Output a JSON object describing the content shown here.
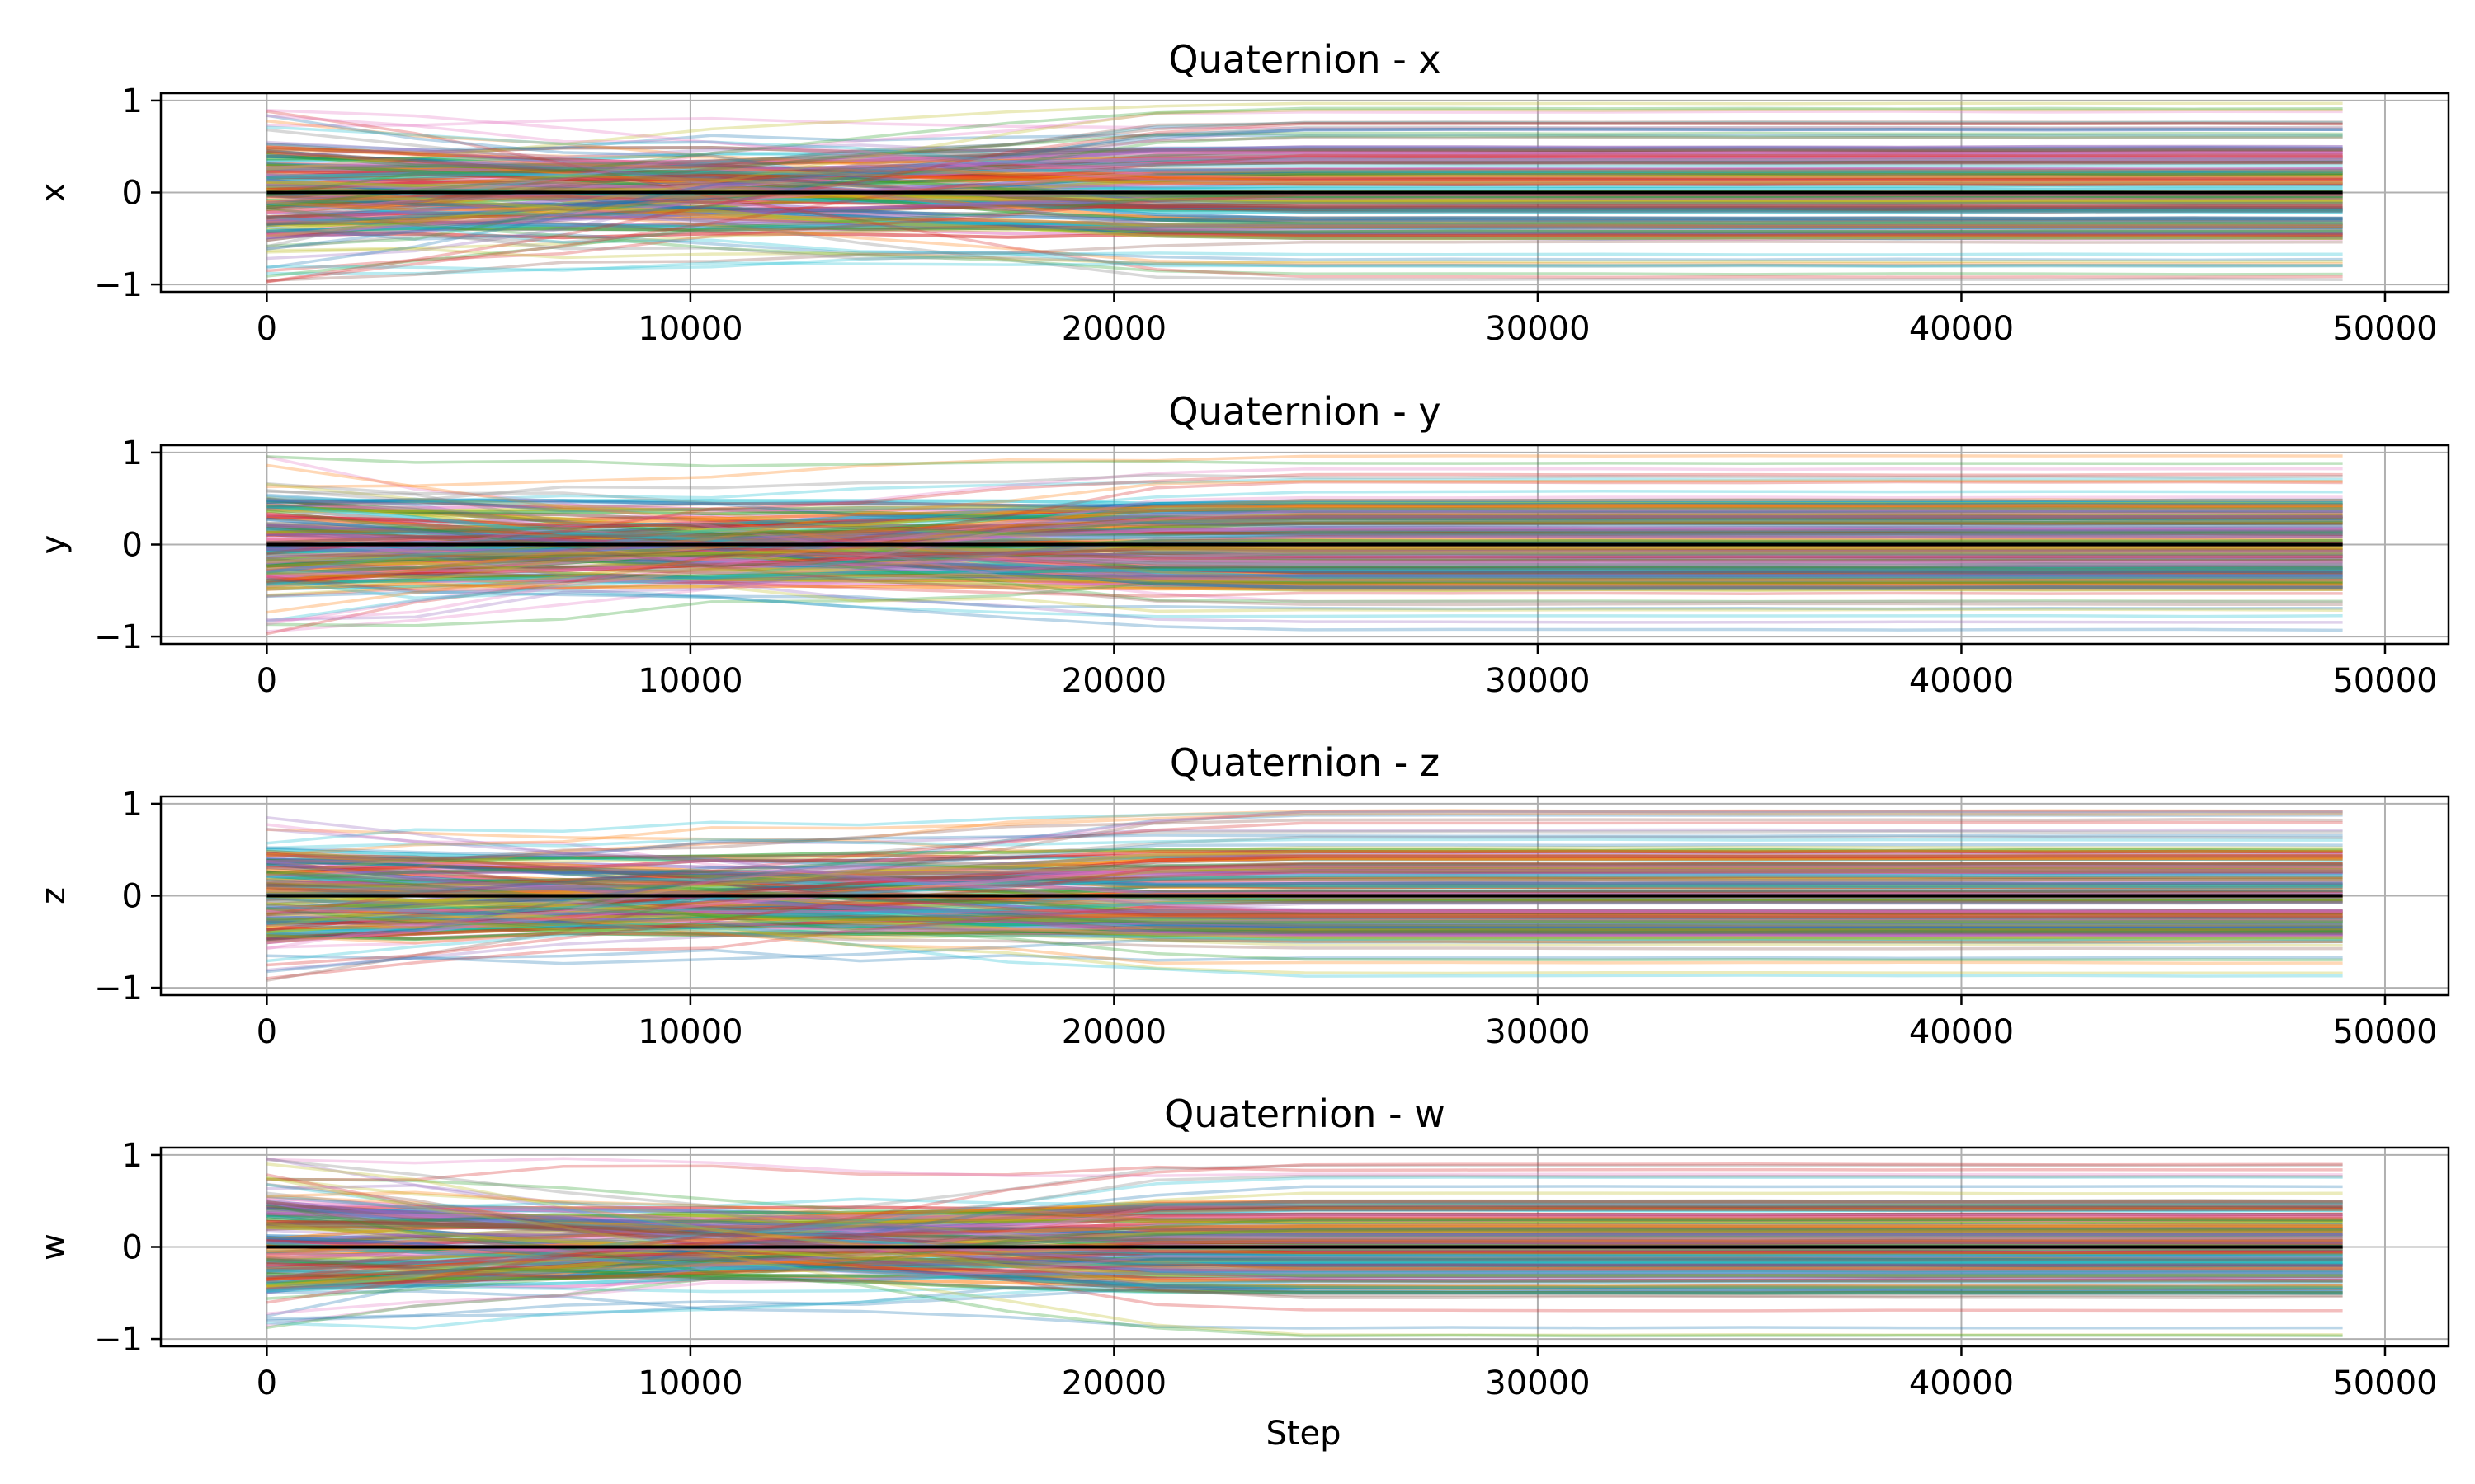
{
  "figure": {
    "xlabel": "Step",
    "background": "#ffffff",
    "grid_color": "#b0b0b0",
    "mean_line_color": "#000000",
    "trace_palette": [
      "#1f77b4",
      "#ff7f0e",
      "#2ca02c",
      "#d62728",
      "#9467bd",
      "#8c564b",
      "#e377c2",
      "#7f7f7f",
      "#bcbd22",
      "#17becf"
    ]
  },
  "chart_data": [
    {
      "type": "line",
      "title": "Quaternion - x",
      "xlabel": "",
      "ylabel": "x",
      "xlim": [
        -2500,
        51500
      ],
      "ylim": [
        -1.08,
        1.08
      ],
      "xticks": [
        0,
        10000,
        20000,
        30000,
        40000,
        50000
      ],
      "yticks": [
        -1,
        0,
        1
      ],
      "x_range_of_data": [
        0,
        49000
      ],
      "grid": true,
      "series": [
        {
          "values_x": [
            0,
            10000,
            20000,
            30000,
            40000,
            49000
          ],
          "values_y": [
            0,
            0,
            0,
            0,
            0,
            0
          ]
        }
      ],
      "traces": {
        "dense_band": [
          -0.5,
          0.5
        ],
        "envelope": [
          -0.97,
          0.97
        ]
      }
    },
    {
      "type": "line",
      "title": "Quaternion - y",
      "xlabel": "",
      "ylabel": "y",
      "xlim": [
        -2500,
        51500
      ],
      "ylim": [
        -1.08,
        1.08
      ],
      "xticks": [
        0,
        10000,
        20000,
        30000,
        40000,
        50000
      ],
      "yticks": [
        -1,
        0,
        1
      ],
      "x_range_of_data": [
        0,
        49000
      ],
      "grid": true,
      "series": [
        {
          "values_x": [
            0,
            10000,
            20000,
            30000,
            40000,
            49000
          ],
          "values_y": [
            0,
            0,
            0,
            0,
            0,
            0
          ]
        }
      ],
      "traces": {
        "dense_band": [
          -0.5,
          0.5
        ],
        "envelope": [
          -0.97,
          0.97
        ]
      }
    },
    {
      "type": "line",
      "title": "Quaternion - z",
      "xlabel": "",
      "ylabel": "z",
      "xlim": [
        -2500,
        51500
      ],
      "ylim": [
        -1.08,
        1.08
      ],
      "xticks": [
        0,
        10000,
        20000,
        30000,
        40000,
        50000
      ],
      "yticks": [
        -1,
        0,
        1
      ],
      "x_range_of_data": [
        0,
        49000
      ],
      "grid": true,
      "series": [
        {
          "values_x": [
            0,
            10000,
            20000,
            30000,
            40000,
            49000
          ],
          "values_y": [
            0,
            0,
            0,
            0,
            0,
            0
          ]
        }
      ],
      "traces": {
        "dense_band": [
          -0.5,
          0.5
        ],
        "envelope": [
          -0.97,
          0.97
        ]
      }
    },
    {
      "type": "line",
      "title": "Quaternion - w",
      "xlabel": "Step",
      "ylabel": "w",
      "xlim": [
        -2500,
        51500
      ],
      "ylim": [
        -1.08,
        1.08
      ],
      "xticks": [
        0,
        10000,
        20000,
        30000,
        40000,
        50000
      ],
      "yticks": [
        -1,
        0,
        1
      ],
      "x_range_of_data": [
        0,
        49000
      ],
      "grid": true,
      "series": [
        {
          "values_x": [
            0,
            10000,
            20000,
            30000,
            40000,
            49000
          ],
          "values_y": [
            0,
            0,
            0,
            0,
            0,
            0
          ]
        }
      ],
      "traces": {
        "dense_band": [
          -0.5,
          0.5
        ],
        "envelope": [
          -0.97,
          0.97
        ]
      }
    }
  ]
}
